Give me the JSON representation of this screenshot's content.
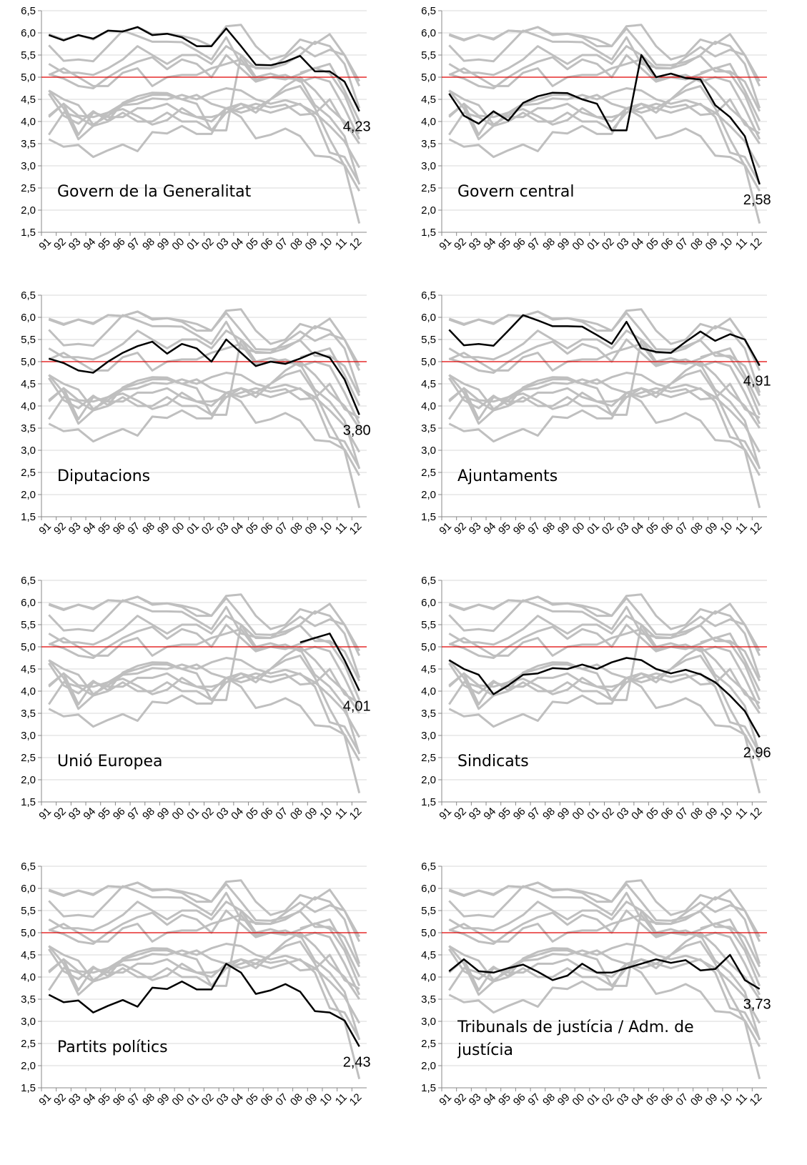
{
  "chart_data": {
    "type": "line",
    "categories": [
      "91",
      "92",
      "93",
      "94",
      "95",
      "96",
      "97",
      "98",
      "99",
      "00",
      "01",
      "02",
      "03",
      "04",
      "05",
      "06",
      "07",
      "08",
      "09",
      "10",
      "11",
      "12"
    ],
    "ylim": [
      1.5,
      6.5
    ],
    "yticks": [
      {
        "value": 1.5,
        "label": "1,5"
      },
      {
        "value": 2,
        "label": "2,0"
      },
      {
        "value": 2.5,
        "label": "2,5"
      },
      {
        "value": 3,
        "label": "3,0"
      },
      {
        "value": 3.5,
        "label": "3,5"
      },
      {
        "value": 4,
        "label": "4,0"
      },
      {
        "value": 4.5,
        "label": "4,5"
      },
      {
        "value": 5,
        "label": "5,0"
      },
      {
        "value": 5.5,
        "label": "5,5"
      },
      {
        "value": 6,
        "label": "6,0"
      },
      {
        "value": 6.5,
        "label": "6,5"
      }
    ],
    "grid": true,
    "reference_line": 5,
    "highlight_color": "#000000",
    "background_color": "#bfbfbf",
    "reference_color": "#e00000",
    "series": [
      {
        "name": "Govern de la Generalitat",
        "values": [
          5.95,
          5.83,
          5.95,
          5.87,
          6.05,
          6.03,
          6.13,
          5.95,
          5.98,
          5.9,
          5.7,
          5.7,
          6.1,
          5.7,
          5.28,
          5.27,
          5.35,
          5.48,
          5.13,
          5.13,
          4.9,
          4.23
        ],
        "value_labels": [
          null,
          null,
          null,
          null,
          null,
          null,
          null,
          null,
          null,
          null,
          null,
          null,
          null,
          null,
          null,
          null,
          null,
          null,
          null,
          null,
          null,
          "4,23"
        ]
      },
      {
        "name": "Govern central",
        "values": [
          4.63,
          4.13,
          3.95,
          4.23,
          4.02,
          4.42,
          4.57,
          4.65,
          4.64,
          4.5,
          4.4,
          3.8,
          3.8,
          5.5,
          5.0,
          5.08,
          4.98,
          4.95,
          4.37,
          4.1,
          3.67,
          2.58
        ],
        "value_labels": [
          null,
          null,
          null,
          null,
          null,
          null,
          null,
          null,
          null,
          null,
          null,
          null,
          null,
          null,
          null,
          null,
          null,
          null,
          null,
          null,
          null,
          "2,58"
        ]
      },
      {
        "name": "Diputacions",
        "values": [
          5.07,
          4.97,
          4.8,
          4.75,
          5.0,
          5.2,
          5.35,
          5.45,
          5.18,
          5.4,
          5.3,
          5.0,
          5.5,
          5.2,
          4.9,
          5.0,
          4.95,
          5.07,
          5.21,
          5.09,
          4.6,
          3.8
        ],
        "value_labels": [
          null,
          null,
          null,
          null,
          null,
          null,
          null,
          null,
          null,
          null,
          null,
          null,
          null,
          null,
          null,
          null,
          null,
          null,
          null,
          null,
          null,
          "3,80"
        ]
      },
      {
        "name": "Ajuntaments",
        "values": [
          5.72,
          5.37,
          5.4,
          5.36,
          5.7,
          6.05,
          5.93,
          5.8,
          5.8,
          5.79,
          5.6,
          5.4,
          5.9,
          5.3,
          5.22,
          5.2,
          5.45,
          5.68,
          5.47,
          5.62,
          5.5,
          4.91
        ],
        "value_labels": [
          null,
          null,
          null,
          null,
          null,
          null,
          null,
          null,
          null,
          null,
          null,
          null,
          null,
          null,
          null,
          null,
          null,
          null,
          null,
          null,
          null,
          "4,91"
        ]
      },
      {
        "name": "Unió Europea",
        "values": [
          null,
          null,
          null,
          null,
          null,
          null,
          null,
          null,
          null,
          null,
          null,
          null,
          null,
          null,
          null,
          null,
          null,
          5.1,
          5.2,
          5.3,
          4.7,
          4.01
        ],
        "value_labels": [
          null,
          null,
          null,
          null,
          null,
          null,
          null,
          null,
          null,
          null,
          null,
          null,
          null,
          null,
          null,
          null,
          null,
          null,
          null,
          null,
          null,
          "4,01"
        ]
      },
      {
        "name": "Sindicats",
        "values": [
          4.7,
          4.5,
          4.37,
          3.93,
          4.13,
          4.37,
          4.4,
          4.52,
          4.5,
          4.6,
          4.5,
          4.65,
          4.75,
          4.7,
          4.5,
          4.4,
          4.48,
          4.38,
          4.2,
          3.9,
          3.55,
          2.96
        ],
        "value_labels": [
          null,
          null,
          null,
          null,
          null,
          null,
          null,
          null,
          null,
          null,
          null,
          null,
          null,
          null,
          null,
          null,
          null,
          null,
          null,
          null,
          null,
          "2,96"
        ]
      },
      {
        "name": "Partits polítics",
        "values": [
          3.6,
          3.43,
          3.47,
          3.2,
          3.35,
          3.48,
          3.33,
          3.76,
          3.73,
          3.9,
          3.72,
          3.72,
          4.3,
          4.1,
          3.62,
          3.7,
          3.84,
          3.67,
          3.23,
          3.2,
          3.02,
          2.43
        ],
        "value_labels": [
          null,
          null,
          null,
          null,
          null,
          null,
          null,
          null,
          null,
          null,
          null,
          null,
          null,
          null,
          null,
          null,
          null,
          null,
          null,
          null,
          null,
          "2,43"
        ]
      },
      {
        "name": "Tribunals de justícia / Adm. de justícia",
        "values": [
          4.13,
          4.4,
          4.13,
          4.1,
          4.2,
          4.28,
          4.12,
          3.93,
          4.03,
          4.3,
          4.1,
          4.1,
          4.2,
          4.3,
          4.4,
          4.32,
          4.38,
          4.15,
          4.18,
          4.5,
          3.93,
          3.73
        ],
        "value_labels": [
          null,
          null,
          null,
          null,
          null,
          null,
          null,
          null,
          null,
          null,
          null,
          null,
          null,
          null,
          null,
          null,
          null,
          null,
          null,
          null,
          null,
          "3,73"
        ]
      }
    ],
    "other_series": [
      {
        "values": [
          5.97,
          5.85,
          5.95,
          5.85,
          6.05,
          6.03,
          6.13,
          5.97,
          5.98,
          5.93,
          5.85,
          5.7,
          6.15,
          6.18,
          5.7,
          5.4,
          5.5,
          5.85,
          5.75,
          5.97,
          5.5,
          4.8
        ]
      },
      {
        "values": [
          5.3,
          5.1,
          5.1,
          5.05,
          5.2,
          5.4,
          5.7,
          5.5,
          5.3,
          5.5,
          5.5,
          5.3,
          5.7,
          5.5,
          5.2,
          5.2,
          5.3,
          5.5,
          5.8,
          5.7,
          5.3,
          4.3
        ]
      },
      {
        "values": [
          4.7,
          4.3,
          3.6,
          3.9,
          4.2,
          4.4,
          4.5,
          4.6,
          4.6,
          4.5,
          4.6,
          4.4,
          4.3,
          4.4,
          4.3,
          4.5,
          4.7,
          4.8,
          4.3,
          3.6,
          3.0,
          1.7
        ]
      },
      {
        "values": [
          4.1,
          4.4,
          3.7,
          4.2,
          4.1,
          4.1,
          4.3,
          4.3,
          4.4,
          4.2,
          4.1,
          4.0,
          4.3,
          4.2,
          4.3,
          4.2,
          4.3,
          4.4,
          4.1,
          3.3,
          3.2,
          2.6
        ]
      },
      {
        "values": [
          3.7,
          4.2,
          4.1,
          3.9,
          4.0,
          4.2,
          4.0,
          4.0,
          4.2,
          4.0,
          4.0,
          3.8,
          4.2,
          4.4,
          4.2,
          4.5,
          4.8,
          5.0,
          4.7,
          4.3,
          4.0,
          3.5
        ]
      },
      {
        "values": [
          5.05,
          5.2,
          5.0,
          4.8,
          4.8,
          5.1,
          5.2,
          4.8,
          5.0,
          5.05,
          5.05,
          5.2,
          5.3,
          5.4,
          4.95,
          5.0,
          5.05,
          4.9,
          5.0,
          4.9,
          4.3,
          3.6
        ]
      }
    ]
  }
}
